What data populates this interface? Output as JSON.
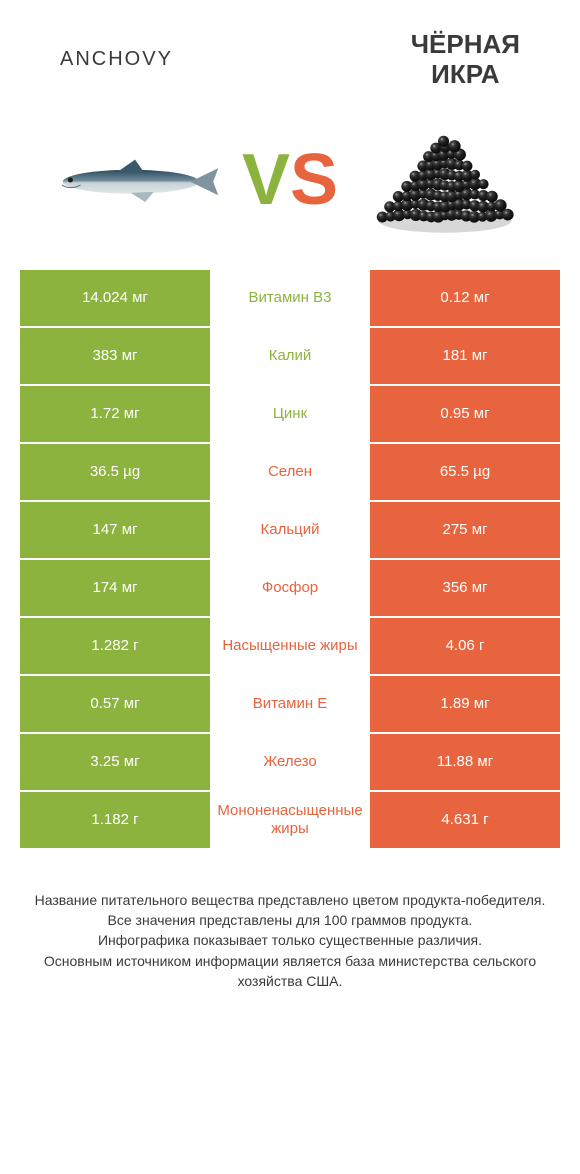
{
  "colors": {
    "left": "#8db33f",
    "right": "#e7643e",
    "leftText": "#ffffff",
    "rightText": "#ffffff",
    "vsV": "#8db33f",
    "vsS": "#e7643e",
    "titleText": "#3a3a3a",
    "footerText": "#3a3a3a",
    "background": "#ffffff"
  },
  "header": {
    "leftTitle": "ANCHOVY",
    "rightTitleLine1": "ЧЁРНАЯ",
    "rightTitleLine2": "ИКРА"
  },
  "vs": {
    "v": "V",
    "s": "S"
  },
  "rows": [
    {
      "left": "14.024 мг",
      "label": "Витамин B3",
      "right": "0.12 мг",
      "winner": "left"
    },
    {
      "left": "383 мг",
      "label": "Калий",
      "right": "181 мг",
      "winner": "left"
    },
    {
      "left": "1.72 мг",
      "label": "Цинк",
      "right": "0.95 мг",
      "winner": "left"
    },
    {
      "left": "36.5 µg",
      "label": "Селен",
      "right": "65.5 µg",
      "winner": "right"
    },
    {
      "left": "147 мг",
      "label": "Кальций",
      "right": "275 мг",
      "winner": "right"
    },
    {
      "left": "174 мг",
      "label": "Фосфор",
      "right": "356 мг",
      "winner": "right"
    },
    {
      "left": "1.282 г",
      "label": "Насыщенные жиры",
      "right": "4.06 г",
      "winner": "right"
    },
    {
      "left": "0.57 мг",
      "label": "Витамин E",
      "right": "1.89 мг",
      "winner": "right"
    },
    {
      "left": "3.25 мг",
      "label": "Железо",
      "right": "11.88 мг",
      "winner": "right"
    },
    {
      "left": "1.182 г",
      "label": "Мононенасыщенные жиры",
      "right": "4.631 г",
      "winner": "right"
    }
  ],
  "footer": {
    "line1": "Название питательного вещества представлено цветом продукта-победителя.",
    "line2": "Все значения представлены для 100 граммов продукта.",
    "line3": "Инфографика показывает только существенные различия.",
    "line4": "Основным источником информации является база министерства сельского хозяйства США."
  }
}
